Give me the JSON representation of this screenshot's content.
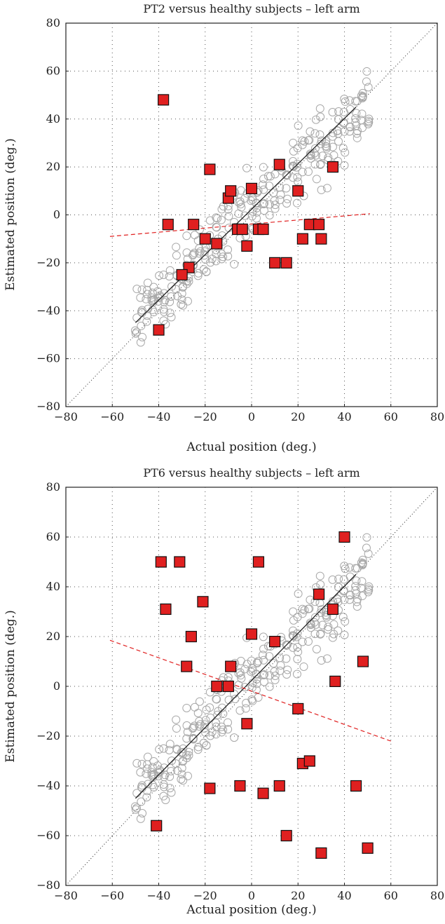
{
  "chart_data": [
    {
      "type": "scatter",
      "title": "PT2 versus healthy subjects – left arm",
      "xlabel": "Actual position (deg.)",
      "ylabel": "Estimated position (deg.)",
      "xlim": [
        -80,
        80
      ],
      "ylim": [
        -80,
        80
      ],
      "xticks": [
        -80,
        -60,
        -40,
        -20,
        0,
        20,
        40,
        60,
        80
      ],
      "yticks": [
        -80,
        -60,
        -40,
        -20,
        0,
        20,
        40,
        60,
        80
      ],
      "grid": true,
      "identity_line": true,
      "healthy_fit": {
        "x": [
          -50,
          45
        ],
        "y": [
          -45,
          45
        ]
      },
      "patient_fit": {
        "x": [
          -61,
          51
        ],
        "y": [
          -9,
          0.5
        ]
      },
      "patient_points": {
        "x": [
          -38,
          -36,
          -40,
          -25,
          -27,
          -30,
          -20,
          -18,
          -15,
          -10,
          -9,
          -6,
          -4,
          -2,
          0,
          3,
          5,
          10,
          12,
          15,
          20,
          22,
          25,
          29,
          30,
          35
        ],
        "y": [
          48,
          -4,
          -48,
          -4,
          -22,
          -25,
          -10,
          19,
          -12,
          7,
          10,
          -6,
          -6,
          -13,
          11,
          -6,
          -6,
          -20,
          21,
          -20,
          10,
          -10,
          -4,
          -4,
          -10,
          20
        ]
      },
      "colors": {
        "healthy": "#a8a8a8",
        "patient": "#e02020",
        "patient_fit": "#e02020",
        "fit": "#222222"
      }
    },
    {
      "type": "scatter",
      "title": "PT6 versus healthy subjects – left arm",
      "xlabel": "Actual position (deg.)",
      "ylabel": "Estimated position (deg.)",
      "xlim": [
        -80,
        80
      ],
      "ylim": [
        -80,
        80
      ],
      "xticks": [
        -80,
        -60,
        -40,
        -20,
        0,
        20,
        40,
        60,
        80
      ],
      "yticks": [
        -80,
        -60,
        -40,
        -20,
        0,
        20,
        40,
        60,
        80
      ],
      "grid": true,
      "identity_line": true,
      "healthy_fit": {
        "x": [
          -50,
          45
        ],
        "y": [
          -45,
          45
        ]
      },
      "patient_fit": {
        "x": [
          -61,
          60
        ],
        "y": [
          18.5,
          -22
        ]
      },
      "patient_points": {
        "x": [
          -39,
          -31,
          -37,
          -21,
          -26,
          -28,
          -41,
          -15,
          -10,
          -9,
          -18,
          -5,
          -2,
          0,
          3,
          5,
          10,
          12,
          15,
          20,
          22,
          25,
          29,
          30,
          35,
          36,
          40,
          45,
          48,
          50
        ],
        "y": [
          50,
          50,
          31,
          34,
          20,
          8,
          -56,
          0,
          0,
          8,
          -41,
          -40,
          -15,
          21,
          50,
          -43,
          18,
          -40,
          -60,
          -9,
          -31,
          -30,
          37,
          -67,
          31,
          2,
          60,
          -40,
          10,
          -65
        ]
      },
      "colors": {
        "healthy": "#a8a8a8",
        "patient": "#e02020",
        "patient_fit": "#e02020",
        "fit": "#222222"
      }
    }
  ]
}
